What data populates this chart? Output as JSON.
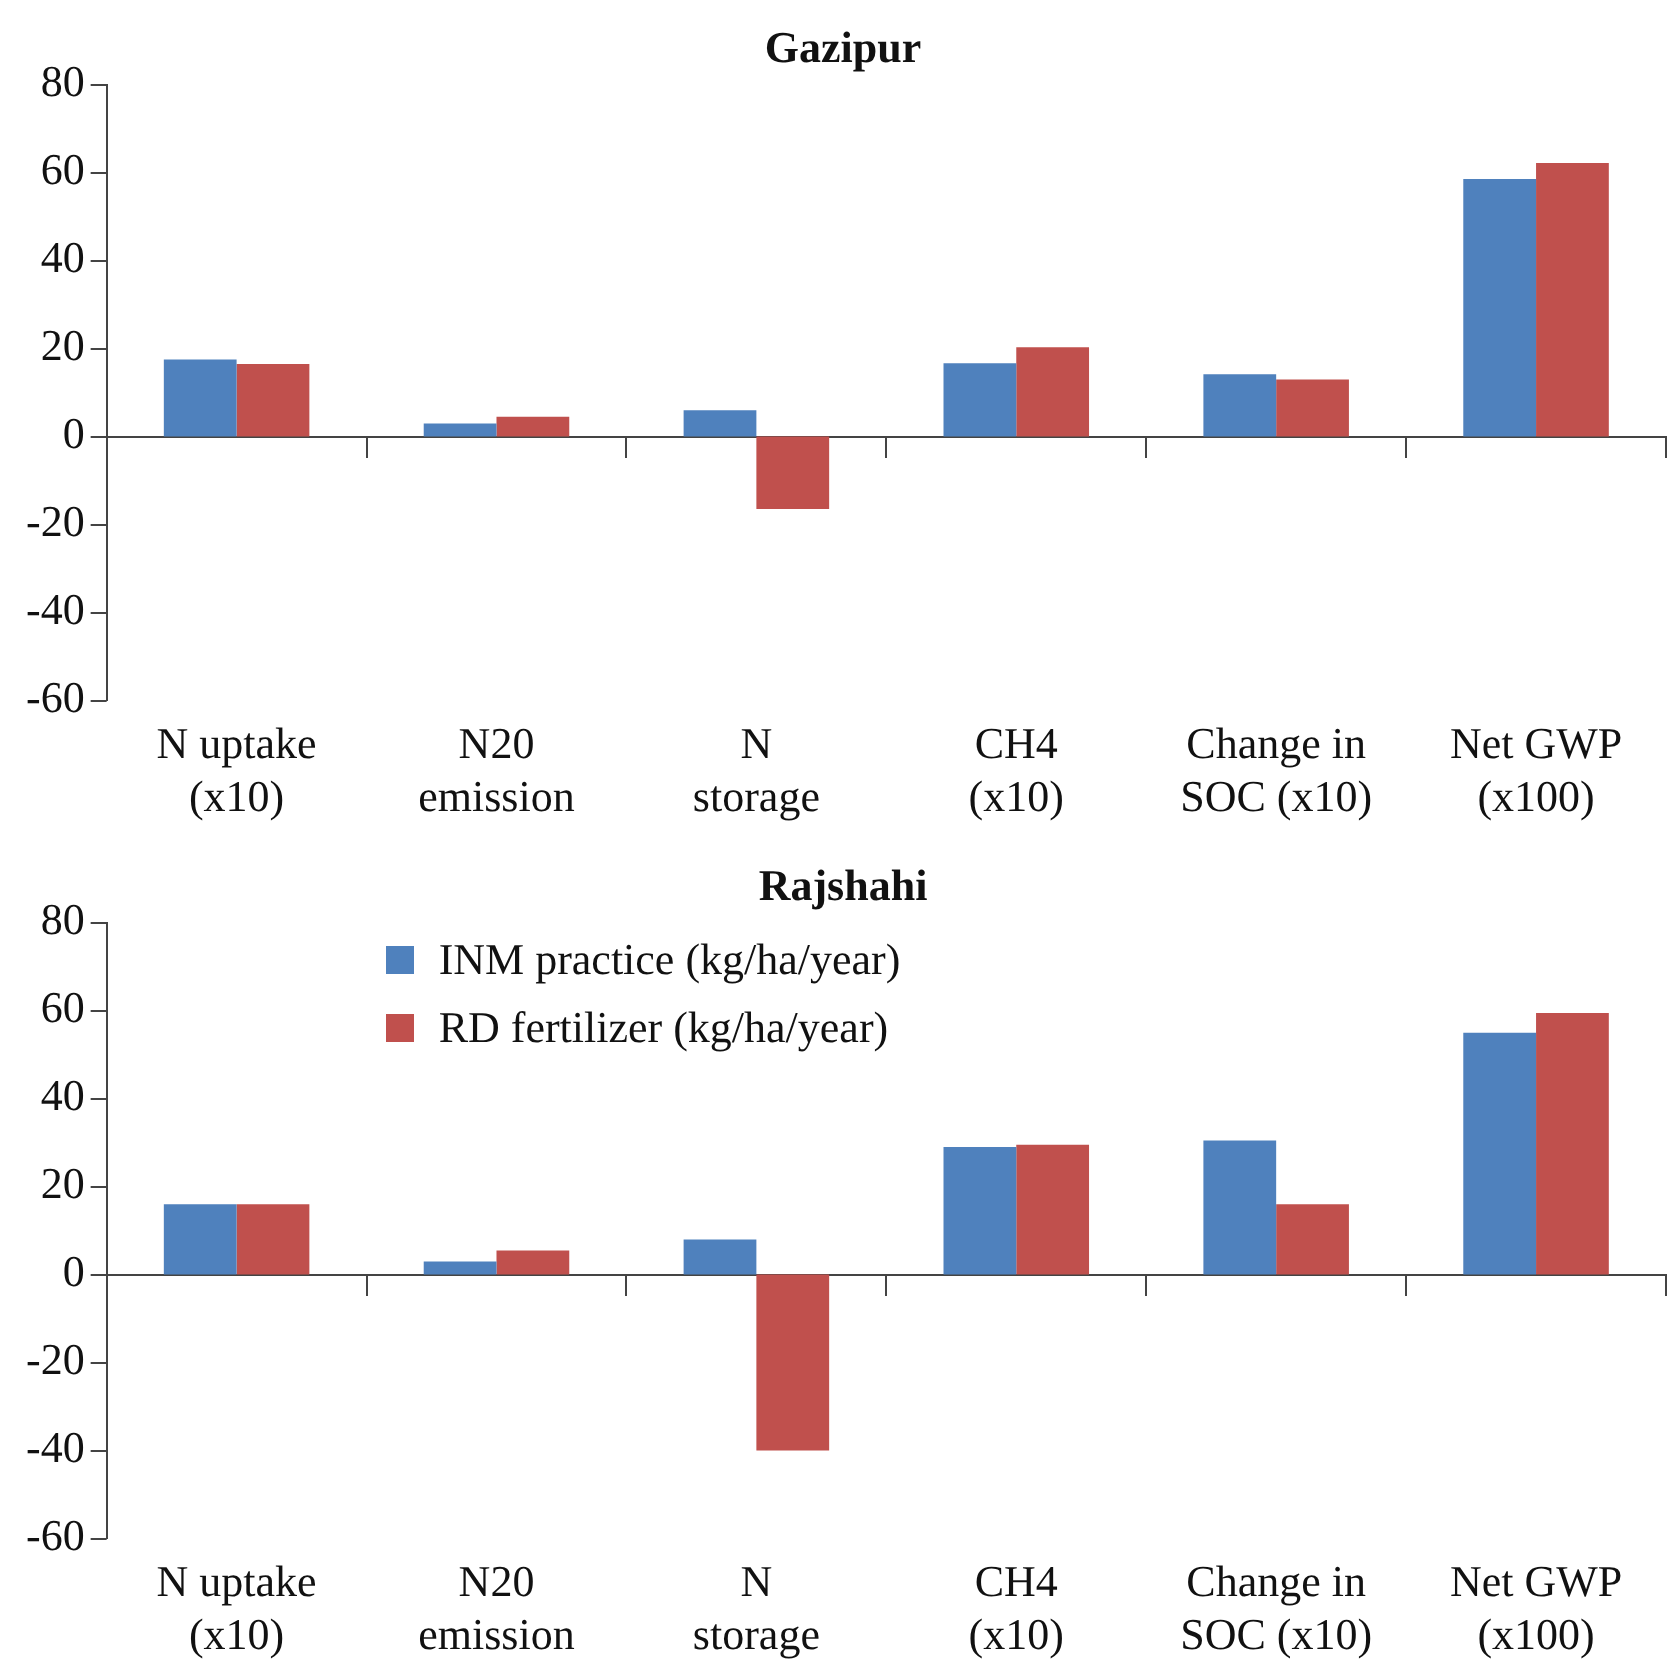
{
  "chart_data": [
    {
      "type": "bar",
      "title": "Gazipur",
      "categories": [
        "N uptake\n(x10)",
        "N20\nemission",
        "N\nstorage",
        "CH4\n(x10)",
        "Change in\nSOC (x10)",
        "Net GWP\n(x100)"
      ],
      "series": [
        {
          "color": "#4f81bd",
          "values": [
            17.5,
            3,
            6,
            16.7,
            14.2,
            58.6
          ]
        },
        {
          "color": "#c0504d",
          "values": [
            16.5,
            4.5,
            -16.5,
            20.3,
            13,
            62.2
          ]
        }
      ],
      "ylim": [
        -60,
        80
      ],
      "yticks": [
        -60,
        -40,
        -20,
        0,
        20,
        40,
        60,
        80
      ],
      "legend": false
    },
    {
      "type": "bar",
      "title": "Rajshahi",
      "categories": [
        "N uptake\n(x10)",
        "N20\nemission",
        "N\nstorage",
        "CH4\n(x10)",
        "Change in\nSOC (x10)",
        "Net GWP\n(x100)"
      ],
      "series": [
        {
          "name": "INM practice (kg/ha/year)",
          "color": "#4f81bd",
          "values": [
            16,
            3,
            8,
            29,
            30.5,
            55
          ]
        },
        {
          "name": "RD fertilizer (kg/ha/year)",
          "color": "#c0504d",
          "values": [
            16,
            5.5,
            -40,
            29.5,
            16,
            59.5
          ]
        }
      ],
      "ylim": [
        -60,
        80
      ],
      "yticks": [
        -60,
        -40,
        -20,
        0,
        20,
        40,
        60,
        80
      ],
      "legend": "top left"
    }
  ]
}
